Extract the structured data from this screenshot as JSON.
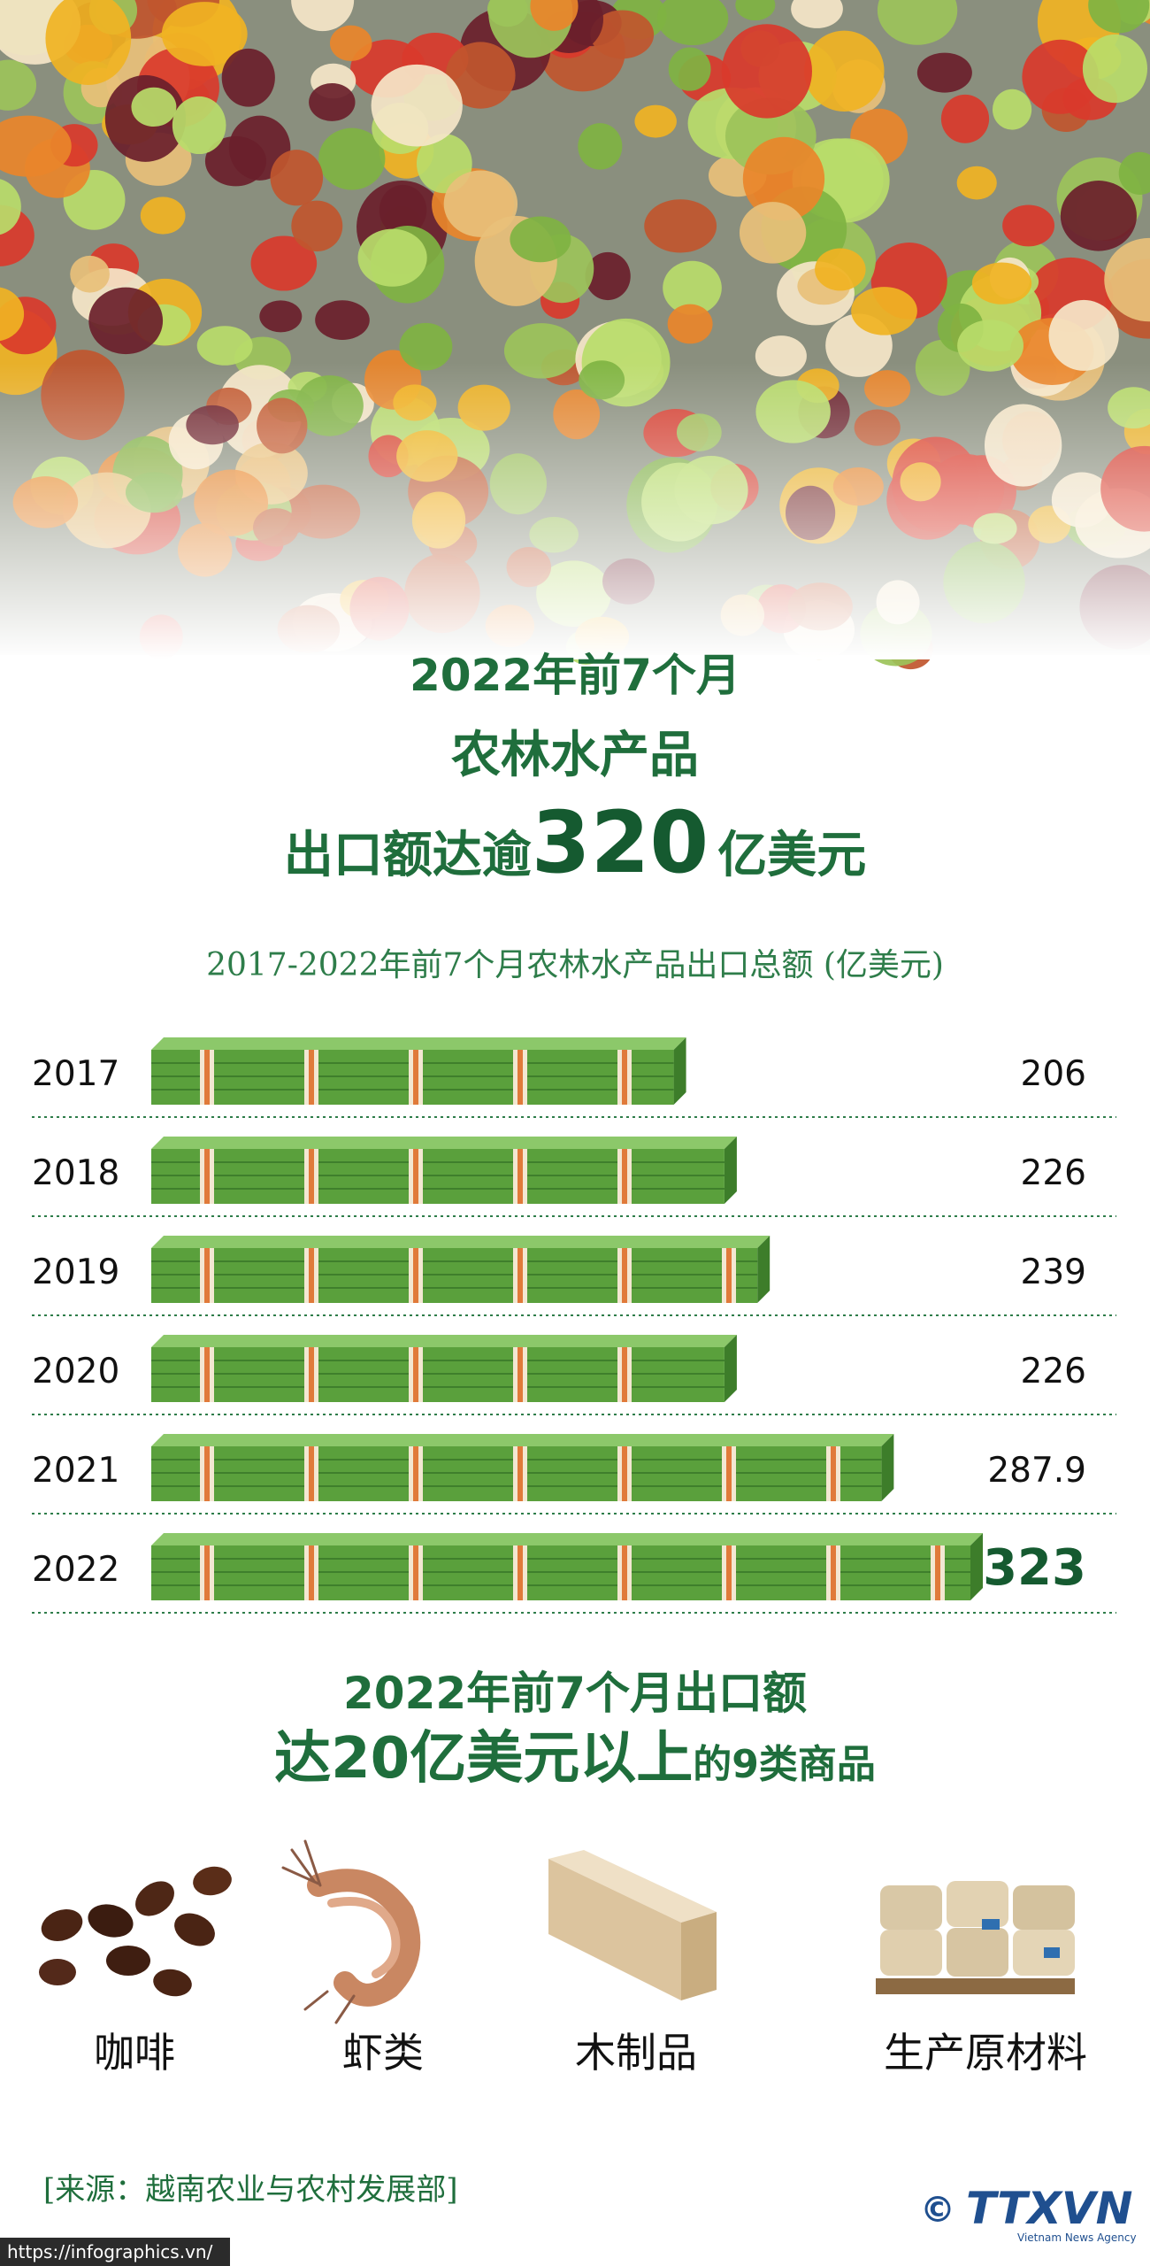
{
  "header": {
    "line1": "2022年前7个月",
    "line2": "农林水产品",
    "line3_prefix": "出口额达逾",
    "line3_number": "320",
    "line3_suffix": "亿美元"
  },
  "chart_data": {
    "type": "bar",
    "orientation": "horizontal",
    "title": "2017-2022年前7个月农林水产品出口总额 (亿美元)",
    "categories": [
      "2017",
      "2018",
      "2019",
      "2020",
      "2021",
      "2022"
    ],
    "values": [
      206,
      226,
      239,
      226,
      287.9,
      323
    ],
    "color": "#5aa03c"
  },
  "products": {
    "title_line1": "2022年前7个月出口额",
    "title_line2_main": "达20亿美元以上",
    "title_line2_suffix": "的9类商品",
    "items": [
      "咖啡",
      "虾类",
      "木制品",
      "生产原材料"
    ]
  },
  "footer": {
    "source": "[来源：越南农业与农村发展部]",
    "copyright": "©",
    "logo": "TTXVN",
    "logo_sub": "Vietnam News Agency",
    "url": "https://infographics.vn/"
  }
}
